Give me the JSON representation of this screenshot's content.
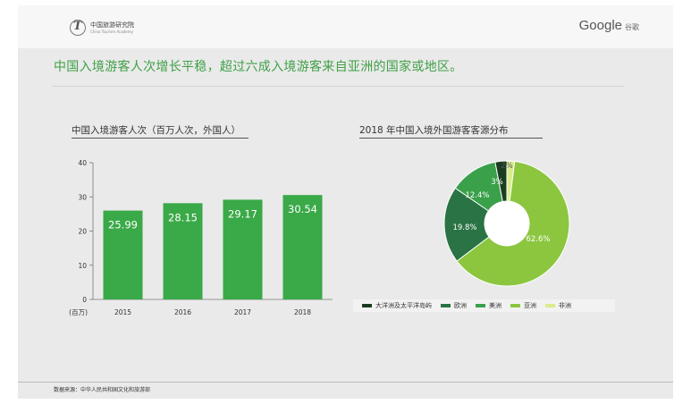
{
  "header": {
    "logo_cn": "中国旅游研究院",
    "logo_en": "China Tourism Academy",
    "google": "Google",
    "google_cn": "谷歌"
  },
  "headline": "中国入境游客人次增长平稳，超过六成入境游客来自亚洲的国家或地区。",
  "footer": {
    "source": "数据来源：中华人民共和国文化和旅游部"
  },
  "colors": {
    "bar": "#3aa948",
    "oceania": "#1a3d1f",
    "europe": "#2a7344",
    "america": "#3aa04a",
    "asia": "#8cc63f",
    "africa": "#d9ec8c"
  },
  "chart_data": [
    {
      "type": "bar",
      "title": "中国入境游客人次（百万人次，外国人）",
      "unit_label": "(百万)",
      "categories": [
        "2015",
        "2016",
        "2017",
        "2018"
      ],
      "values": [
        25.99,
        28.15,
        29.17,
        30.54
      ],
      "value_labels": [
        "25.99",
        "28.15",
        "29.17",
        "30.54"
      ],
      "yticks": [
        "0",
        "10",
        "20",
        "30",
        "40"
      ],
      "ylim": [
        0,
        40
      ],
      "grid": false
    },
    {
      "type": "pie",
      "title": "2018 年中国入境外国游客客源分布",
      "donut": true,
      "slices": [
        {
          "name": "大洋洲及太平洋岛屿",
          "value": 3,
          "label": "3%"
        },
        {
          "name": "欧洲",
          "value": 19.8,
          "label": "19.8%"
        },
        {
          "name": "美洲",
          "value": 12.4,
          "label": "12.4%"
        },
        {
          "name": "亚洲",
          "value": 62.6,
          "label": "62.6%"
        },
        {
          "name": "非洲",
          "value": 2,
          "label": "2%"
        }
      ],
      "legend": "bottom"
    }
  ]
}
